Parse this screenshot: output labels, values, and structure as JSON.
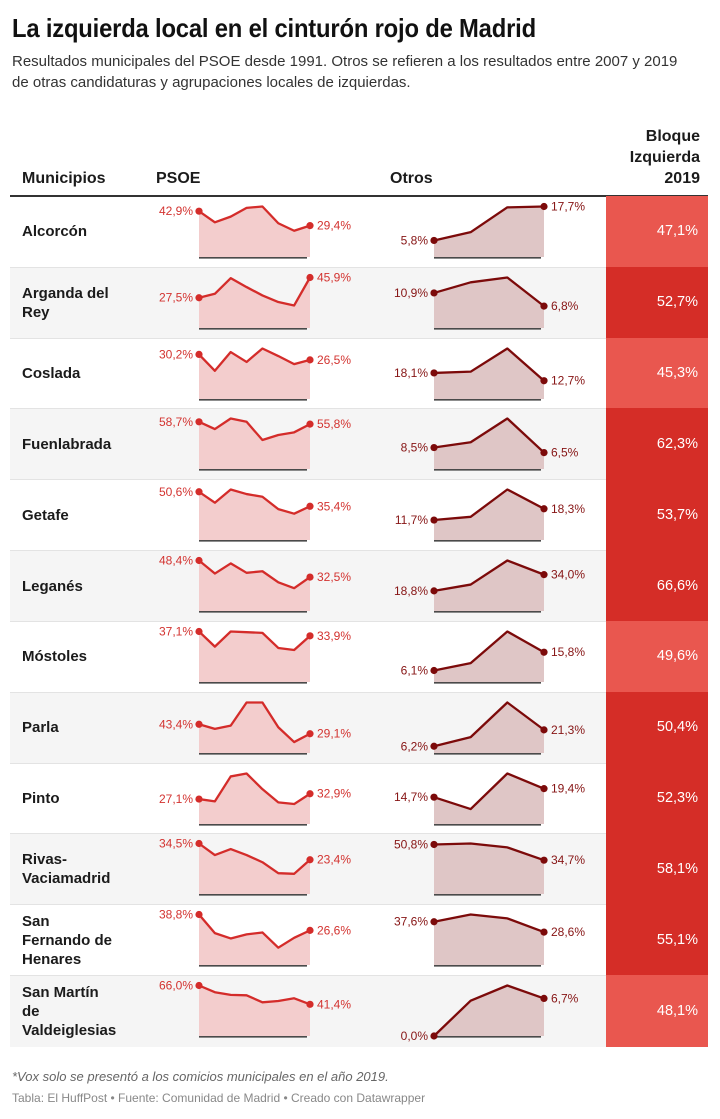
{
  "title": "La izquierda local en el cinturón rojo de Madrid",
  "subtitle": "Resultados municipales del PSOE desde 1991. Otros se refieren a los resultados entre 2007 y 2019 de otras candidaturas y agrupaciones locales de izquierdas.",
  "colors": {
    "psoe_line": "#d42c2a",
    "psoe_fill": "#f3cdcd",
    "psoe_label": "#d33330",
    "otros_line": "#7c0a0a",
    "otros_fill": "#dfc6c6",
    "otros_label": "#861414",
    "baseline": "#4a4a4a",
    "bloque_high": "#d52d27",
    "bloque_low": "#e9574f"
  },
  "chart_data": {
    "type": "table",
    "title": "La izquierda local en el cinturón rojo de Madrid",
    "columns": {
      "municipios": "Municipios",
      "psoe": "PSOE",
      "otros": "Otros",
      "bloque": "Bloque Izquierda 2019"
    },
    "bloque_color_threshold": 50,
    "rows": [
      {
        "municipio": "Alcorcón",
        "psoe": {
          "values": [
            42.9,
            32.5,
            37.8,
            46.0,
            47.3,
            31.6,
            24.6,
            29.4
          ],
          "start_label": "42,9%",
          "end_label": "29,4%"
        },
        "otros": {
          "values": [
            5.8,
            8.7,
            17.4,
            17.7
          ],
          "start_label": "5,8%",
          "end_label": "17,7%"
        },
        "bloque": {
          "value": 47.1,
          "label": "47,1%"
        }
      },
      {
        "municipio": "Arganda del Rey",
        "psoe": {
          "values": [
            27.5,
            31.1,
            45.3,
            37.2,
            29.6,
            23.6,
            20.5,
            45.9
          ],
          "start_label": "27,5%",
          "end_label": "45,9%"
        },
        "otros": {
          "values": [
            10.9,
            14.2,
            15.7,
            6.8
          ],
          "start_label": "10,9%",
          "end_label": "6,8%"
        },
        "bloque": {
          "value": 52.7,
          "label": "52,7%"
        }
      },
      {
        "municipio": "Coslada",
        "psoe": {
          "values": [
            30.2,
            19.1,
            31.8,
            25.1,
            34.2,
            29.1,
            23.6,
            26.5
          ],
          "start_label": "30,2%",
          "end_label": "26,5%"
        },
        "otros": {
          "values": [
            18.1,
            19.0,
            35.1,
            12.7
          ],
          "start_label": "18,1%",
          "end_label": "12,7%"
        },
        "bloque": {
          "value": 45.3,
          "label": "45,3%"
        }
      },
      {
        "municipio": "Fuenlabrada",
        "psoe": {
          "values": [
            58.7,
            49.7,
            62.8,
            58.7,
            36.1,
            42.3,
            45.6,
            55.8
          ],
          "start_label": "58,7%",
          "end_label": "55,8%"
        },
        "otros": {
          "values": [
            8.5,
            10.6,
            20.0,
            6.5
          ],
          "start_label": "8,5%",
          "end_label": "6,5%"
        },
        "bloque": {
          "value": 62.3,
          "label": "62,3%"
        }
      },
      {
        "municipio": "Getafe",
        "psoe": {
          "values": [
            50.6,
            39.1,
            53.0,
            48.2,
            45.4,
            32.4,
            27.6,
            35.4
          ],
          "start_label": "50,6%",
          "end_label": "35,4%"
        },
        "otros": {
          "values": [
            11.7,
            13.6,
            29.6,
            18.3
          ],
          "start_label": "11,7%",
          "end_label": "18,3%"
        },
        "bloque": {
          "value": 53.7,
          "label": "53,7%"
        }
      },
      {
        "municipio": "Leganés",
        "psoe": {
          "values": [
            48.4,
            35.9,
            45.6,
            36.6,
            38.1,
            27.5,
            21.9,
            32.5
          ],
          "start_label": "48,4%",
          "end_label": "32,5%"
        },
        "otros": {
          "values": [
            18.8,
            24.7,
            47.2,
            34.0
          ],
          "start_label": "18,8%",
          "end_label": "34,0%"
        },
        "bloque": {
          "value": 66.6,
          "label": "66,6%"
        }
      },
      {
        "municipio": "Móstoles",
        "psoe": {
          "values": [
            37.1,
            26.0,
            37.1,
            36.6,
            36.1,
            25.0,
            23.5,
            33.9
          ],
          "start_label": "37,1%",
          "end_label": "33,9%"
        },
        "otros": {
          "values": [
            6.1,
            10.0,
            26.8,
            15.8
          ],
          "start_label": "6,1%",
          "end_label": "15,8%"
        },
        "bloque": {
          "value": 49.6,
          "label": "49,6%"
        }
      },
      {
        "municipio": "Parla",
        "psoe": {
          "values": [
            43.4,
            36.4,
            41.4,
            76.3,
            76.3,
            38.9,
            16.5,
            29.1
          ],
          "start_label": "43,4%",
          "end_label": "29,1%"
        },
        "otros": {
          "values": [
            6.2,
            14.6,
            46.5,
            21.3
          ],
          "start_label": "6,2%",
          "end_label": "21,3%"
        },
        "bloque": {
          "value": 50.4,
          "label": "50,4%"
        }
      },
      {
        "municipio": "Pinto",
        "psoe": {
          "values": [
            27.1,
            24.6,
            51.7,
            54.9,
            37.9,
            23.5,
            21.7,
            32.9
          ],
          "start_label": "27,1%",
          "end_label": "32,9%"
        },
        "otros": {
          "values": [
            14.7,
            8.2,
            27.7,
            19.4
          ],
          "start_label": "14,7%",
          "end_label": "19,4%"
        },
        "bloque": {
          "value": 52.3,
          "label": "52,3%"
        }
      },
      {
        "municipio": "Rivas-Vaciamadrid",
        "psoe": {
          "values": [
            34.5,
            26.6,
            30.7,
            26.6,
            21.7,
            14.2,
            13.8,
            23.4
          ],
          "start_label": "34,5%",
          "end_label": "23,4%"
        },
        "otros": {
          "values": [
            50.8,
            51.8,
            47.8,
            34.7
          ],
          "start_label": "50,8%",
          "end_label": "34,7%"
        },
        "bloque": {
          "value": 58.1,
          "label": "58,1%"
        }
      },
      {
        "municipio": "San Fernando de Henares",
        "psoe": {
          "values": [
            38.8,
            24.5,
            20.4,
            23.5,
            25.0,
            13.3,
            20.9,
            26.6
          ],
          "start_label": "38,8%",
          "end_label": "26,6%"
        },
        "otros": {
          "values": [
            37.6,
            43.9,
            40.5,
            28.6
          ],
          "start_label": "37,6%",
          "end_label": "28,6%"
        },
        "bloque": {
          "value": 55.1,
          "label": "55,1%"
        }
      },
      {
        "municipio": "San Martín de Valdeiglesias",
        "psoe": {
          "values": [
            66.0,
            57.2,
            53.7,
            53.2,
            44.0,
            45.8,
            49.3,
            41.4
          ],
          "start_label": "66,0%",
          "end_label": "41,4%"
        },
        "otros": {
          "values": [
            0.0,
            6.3,
            9.0,
            6.7
          ],
          "start_label": "0,0%",
          "end_label": "6,7%"
        },
        "bloque": {
          "value": 48.1,
          "label": "48,1%"
        }
      }
    ]
  },
  "footer": {
    "note": "*Vox solo se presentó a los comicios municipales en el año 2019.",
    "source": "Tabla: El HuffPost • Fuente: Comunidad de Madrid • Creado con Datawrapper"
  }
}
